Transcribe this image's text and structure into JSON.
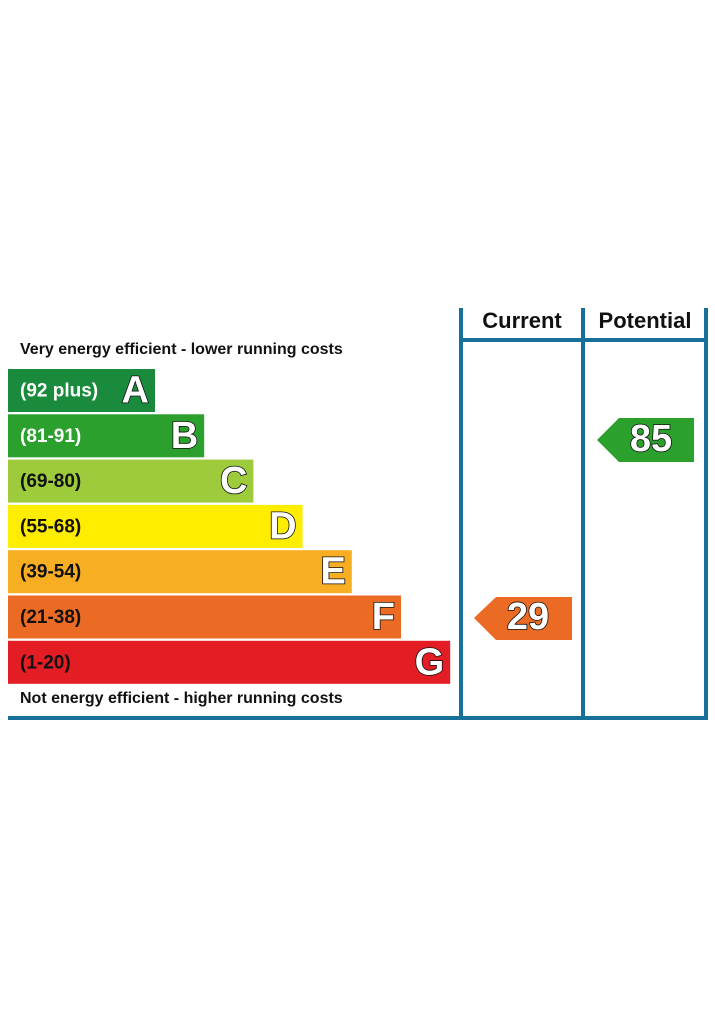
{
  "headers": {
    "current": "Current",
    "potential": "Potential"
  },
  "top_label": "Very energy efficient - lower running costs",
  "bottom_label": "Not energy efficient - higher running costs",
  "bands": [
    {
      "range": "(92 plus)",
      "letter": "A",
      "color": "#1a8a3c",
      "text_color": "#ffffff"
    },
    {
      "range": "(81-91)",
      "letter": "B",
      "color": "#2ba02d",
      "text_color": "#ffffff"
    },
    {
      "range": "(69-80)",
      "letter": "C",
      "color": "#9dcb3c",
      "text_color": "#111111"
    },
    {
      "range": "(55-68)",
      "letter": "D",
      "color": "#ffed00",
      "text_color": "#111111"
    },
    {
      "range": "(39-54)",
      "letter": "E",
      "color": "#f7ae23",
      "text_color": "#111111"
    },
    {
      "range": "(21-38)",
      "letter": "F",
      "color": "#ec6b24",
      "text_color": "#111111"
    },
    {
      "range": "(1-20)",
      "letter": "G",
      "color": "#e31d23",
      "text_color": "#111111"
    }
  ],
  "current": {
    "value": "29",
    "color": "#ec6b24"
  },
  "potential": {
    "value": "85",
    "color": "#2ba02d"
  }
}
